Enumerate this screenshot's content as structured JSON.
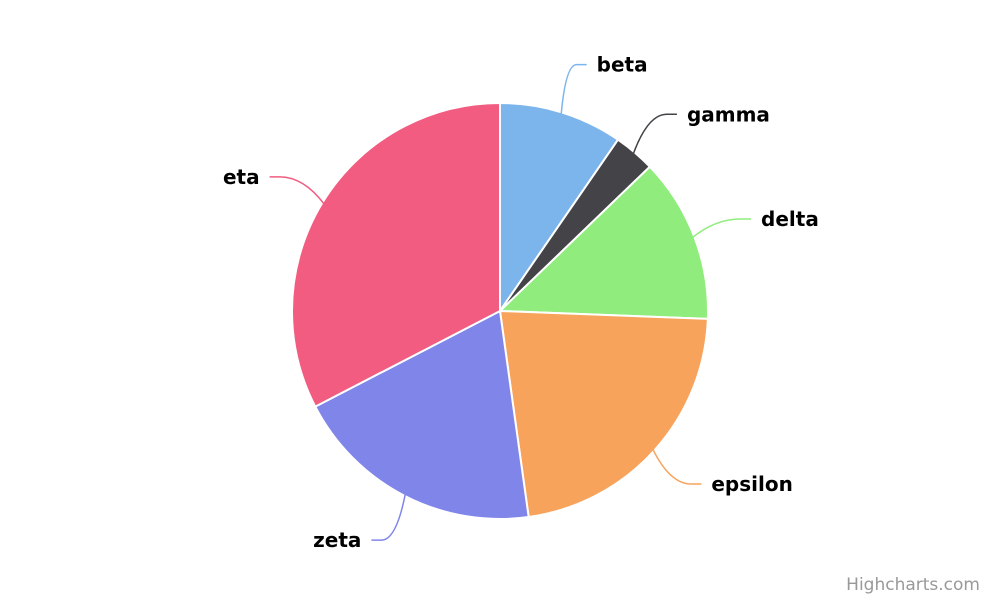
{
  "chart_data": {
    "type": "pie",
    "slices": [
      {
        "name": "beta",
        "value": 9.6,
        "color": "#7cb5ec"
      },
      {
        "name": "gamma",
        "value": 3.2,
        "color": "#434348"
      },
      {
        "name": "delta",
        "value": 12.8,
        "color": "#90ed7d"
      },
      {
        "name": "epsilon",
        "value": 22.2,
        "color": "#f7a35c"
      },
      {
        "name": "zeta",
        "value": 19.6,
        "color": "#8085e9"
      },
      {
        "name": "eta",
        "value": 32.6,
        "color": "#f15c80"
      }
    ]
  },
  "credit": "Highcharts.com"
}
